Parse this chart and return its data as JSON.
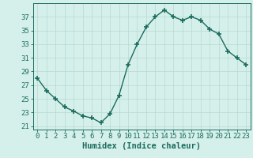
{
  "x": [
    0,
    1,
    2,
    3,
    4,
    5,
    6,
    7,
    8,
    9,
    10,
    11,
    12,
    13,
    14,
    15,
    16,
    17,
    18,
    19,
    20,
    21,
    22,
    23
  ],
  "y": [
    28,
    26.2,
    25,
    23.8,
    23.2,
    22.5,
    22.2,
    21.5,
    22.8,
    25.5,
    30,
    33,
    35.5,
    37,
    38,
    37,
    36.5,
    37,
    36.5,
    35.2,
    34.5,
    32,
    31,
    30
  ],
  "line_color": "#1c6b5e",
  "marker": "+",
  "marker_size": 4,
  "bg_color": "#d5f0eb",
  "grid_color": "#b8d8d2",
  "xlabel": "Humidex (Indice chaleur)",
  "ylim": [
    20.5,
    39
  ],
  "yticks": [
    21,
    23,
    25,
    27,
    29,
    31,
    33,
    35,
    37
  ],
  "xticks": [
    0,
    1,
    2,
    3,
    4,
    5,
    6,
    7,
    8,
    9,
    10,
    11,
    12,
    13,
    14,
    15,
    16,
    17,
    18,
    19,
    20,
    21,
    22,
    23
  ],
  "xlabel_fontsize": 7.5,
  "tick_fontsize": 6.5,
  "tick_color": "#1c6b5e",
  "axis_color": "#1c6b5e",
  "linewidth": 1.0,
  "marker_edge_width": 1.2
}
